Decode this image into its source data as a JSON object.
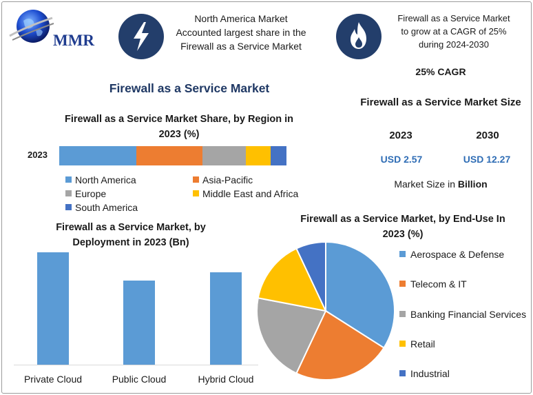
{
  "header": {
    "logo_text": "MMR",
    "callout_left": [
      "North America Market",
      "Accounted largest share in the",
      "Firewall as a Service Market"
    ],
    "callout_right": [
      "Firewall as a Service Market",
      "to grow at a CAGR of 25%",
      "during 2024-2030"
    ],
    "cagr": "25% CAGR",
    "icon_left": "lightning-icon",
    "icon_right": "flame-icon",
    "icon_bg_color": "#233e6b"
  },
  "main_title": "Firewall as a Service Market",
  "market_size": {
    "title": "Firewall as a Service Market Size",
    "years": [
      "2023",
      "2030"
    ],
    "values": [
      "USD 2.57",
      "USD 12.27"
    ],
    "unit_prefix": "Market Size in ",
    "unit_bold": "Billion"
  },
  "chart_data": [
    {
      "type": "bar",
      "orientation": "horizontal-stacked",
      "title": "Firewall as a Service Market Share, by Region in 2023 (%)",
      "categories": [
        "2023"
      ],
      "series": [
        {
          "name": "North America",
          "values": [
            34
          ],
          "color": "#5b9bd5"
        },
        {
          "name": "Asia-Pacific",
          "values": [
            29
          ],
          "color": "#ed7d31"
        },
        {
          "name": "Europe",
          "values": [
            19
          ],
          "color": "#a5a5a5"
        },
        {
          "name": "Middle East and Africa",
          "values": [
            11
          ],
          "color": "#ffc000"
        },
        {
          "name": "South America",
          "values": [
            7
          ],
          "color": "#4472c4"
        }
      ],
      "legend_position": "bottom"
    },
    {
      "type": "bar",
      "title": "Firewall as a Service Market, by Deployment in 2023 (Bn)",
      "categories": [
        "Private Cloud",
        "Public Cloud",
        "Hybrid Cloud"
      ],
      "values": [
        1.0,
        0.75,
        0.82
      ],
      "color": "#5b9bd5",
      "grid": false
    },
    {
      "type": "pie",
      "title": "Firewall as a Service Market, by End-Use In 2023 (%)",
      "labels": [
        "Aerospace & Defense",
        "Telecom & IT",
        "Banking Financial Services",
        "Retail",
        "Industrial"
      ],
      "values": [
        34,
        23,
        21,
        15,
        7
      ],
      "colors": [
        "#5b9bd5",
        "#ed7d31",
        "#a5a5a5",
        "#ffc000",
        "#4472c4"
      ],
      "legend_position": "right"
    }
  ]
}
